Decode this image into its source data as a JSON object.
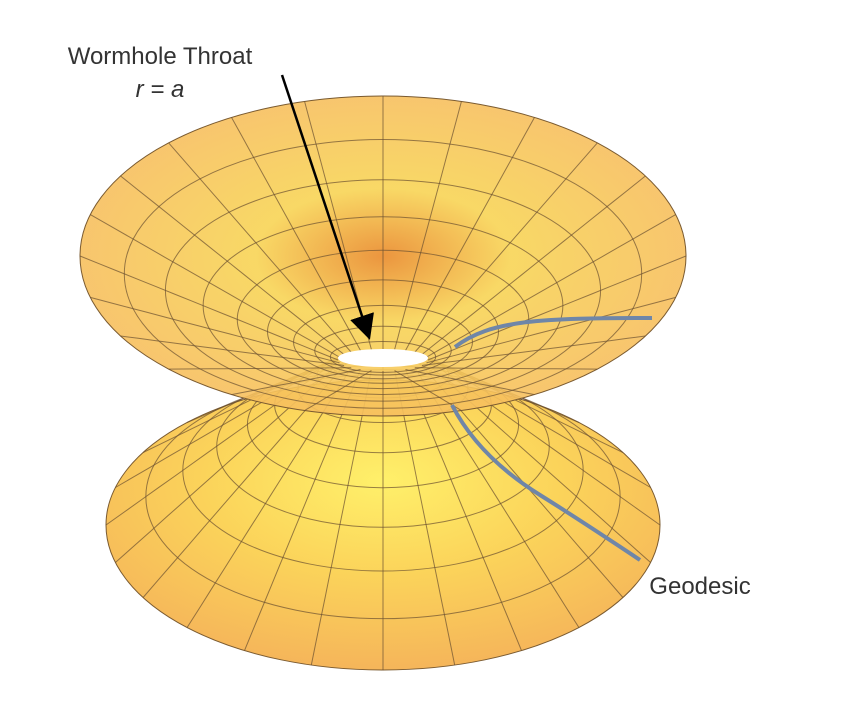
{
  "labels": {
    "throat_title": "Wormhole Throat",
    "throat_equation": "r = a",
    "geodesic": "Geodesic"
  }
}
